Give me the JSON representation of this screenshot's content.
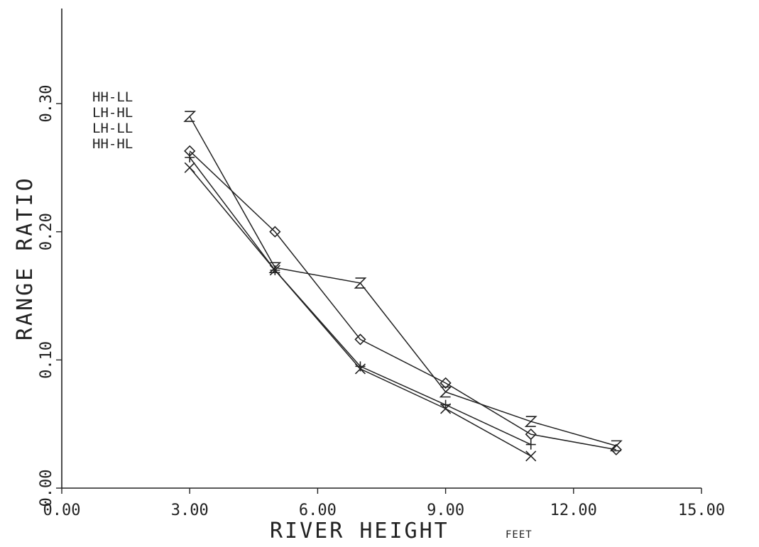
{
  "chart_data": {
    "type": "line",
    "xlabel": "RIVER HEIGHT",
    "xunit": "FEET",
    "ylabel": "RANGE RATIO",
    "xlim": [
      0,
      15
    ],
    "ylim": [
      0,
      0.3
    ],
    "xticks": [
      "0.00",
      "3.00",
      "6.00",
      "9.00",
      "12.00",
      "15.00"
    ],
    "yticks": [
      "0.00",
      "0.10",
      "0.20",
      "0.30"
    ],
    "grid": false,
    "legend_position": "top-left",
    "series": [
      {
        "name": "HH-LL",
        "marker": "hourglass",
        "x": [
          3,
          5,
          7,
          9,
          11,
          13
        ],
        "y": [
          0.29,
          0.172,
          0.16,
          0.075,
          0.052,
          0.033
        ]
      },
      {
        "name": "LH-HL",
        "marker": "diamond",
        "x": [
          3,
          5,
          7,
          9,
          11,
          13
        ],
        "y": [
          0.263,
          0.2,
          0.116,
          0.082,
          0.042,
          0.03
        ]
      },
      {
        "name": "LH-LL",
        "marker": "plus",
        "x": [
          3,
          5,
          7,
          9,
          11
        ],
        "y": [
          0.258,
          0.17,
          0.095,
          0.065,
          0.034
        ]
      },
      {
        "name": "HH-HL",
        "marker": "cross",
        "x": [
          3,
          5,
          7,
          9,
          11
        ],
        "y": [
          0.25,
          0.17,
          0.093,
          0.062,
          0.025
        ]
      }
    ]
  }
}
